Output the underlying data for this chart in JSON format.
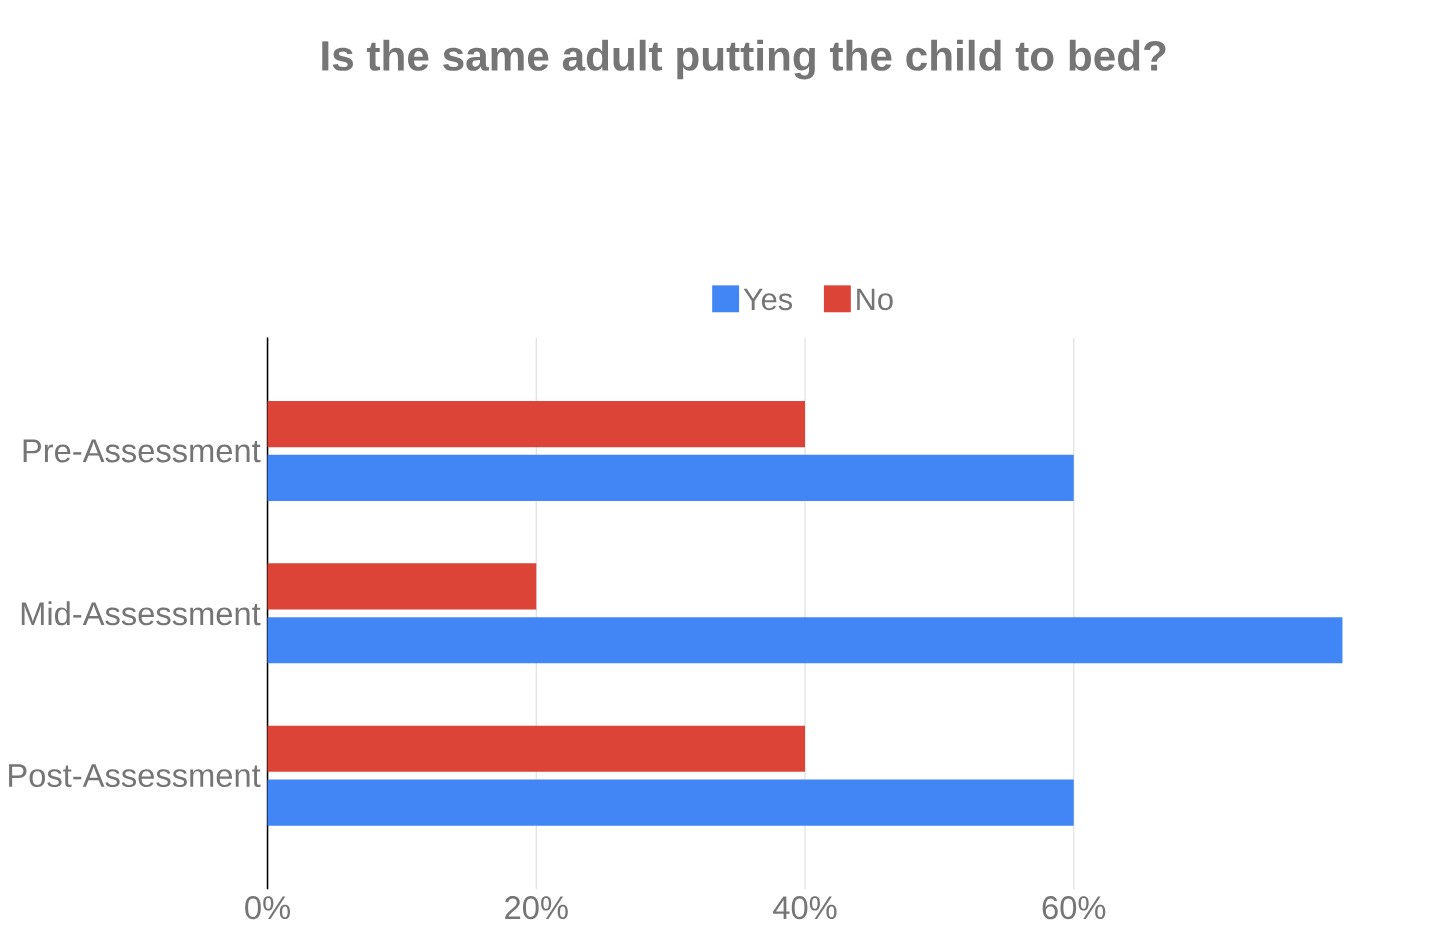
{
  "chart_data": {
    "type": "bar",
    "orientation": "horizontal",
    "title": "Is the same adult putting the child to bed?",
    "categories": [
      "Pre-Assessment",
      "Mid-Assessment",
      "Post-Assessment"
    ],
    "series": [
      {
        "name": "Yes",
        "color": "#4285f4",
        "values": [
          60,
          80,
          60
        ]
      },
      {
        "name": "No",
        "color": "#db4437",
        "values": [
          40,
          20,
          40
        ]
      }
    ],
    "xlim": [
      0,
      80
    ],
    "xticks": [
      {
        "value": 0,
        "label": "0%"
      },
      {
        "value": 20,
        "label": "20%"
      },
      {
        "value": 40,
        "label": "40%"
      },
      {
        "value": 60,
        "label": "60%"
      }
    ],
    "grid": "x",
    "legend": "top"
  }
}
